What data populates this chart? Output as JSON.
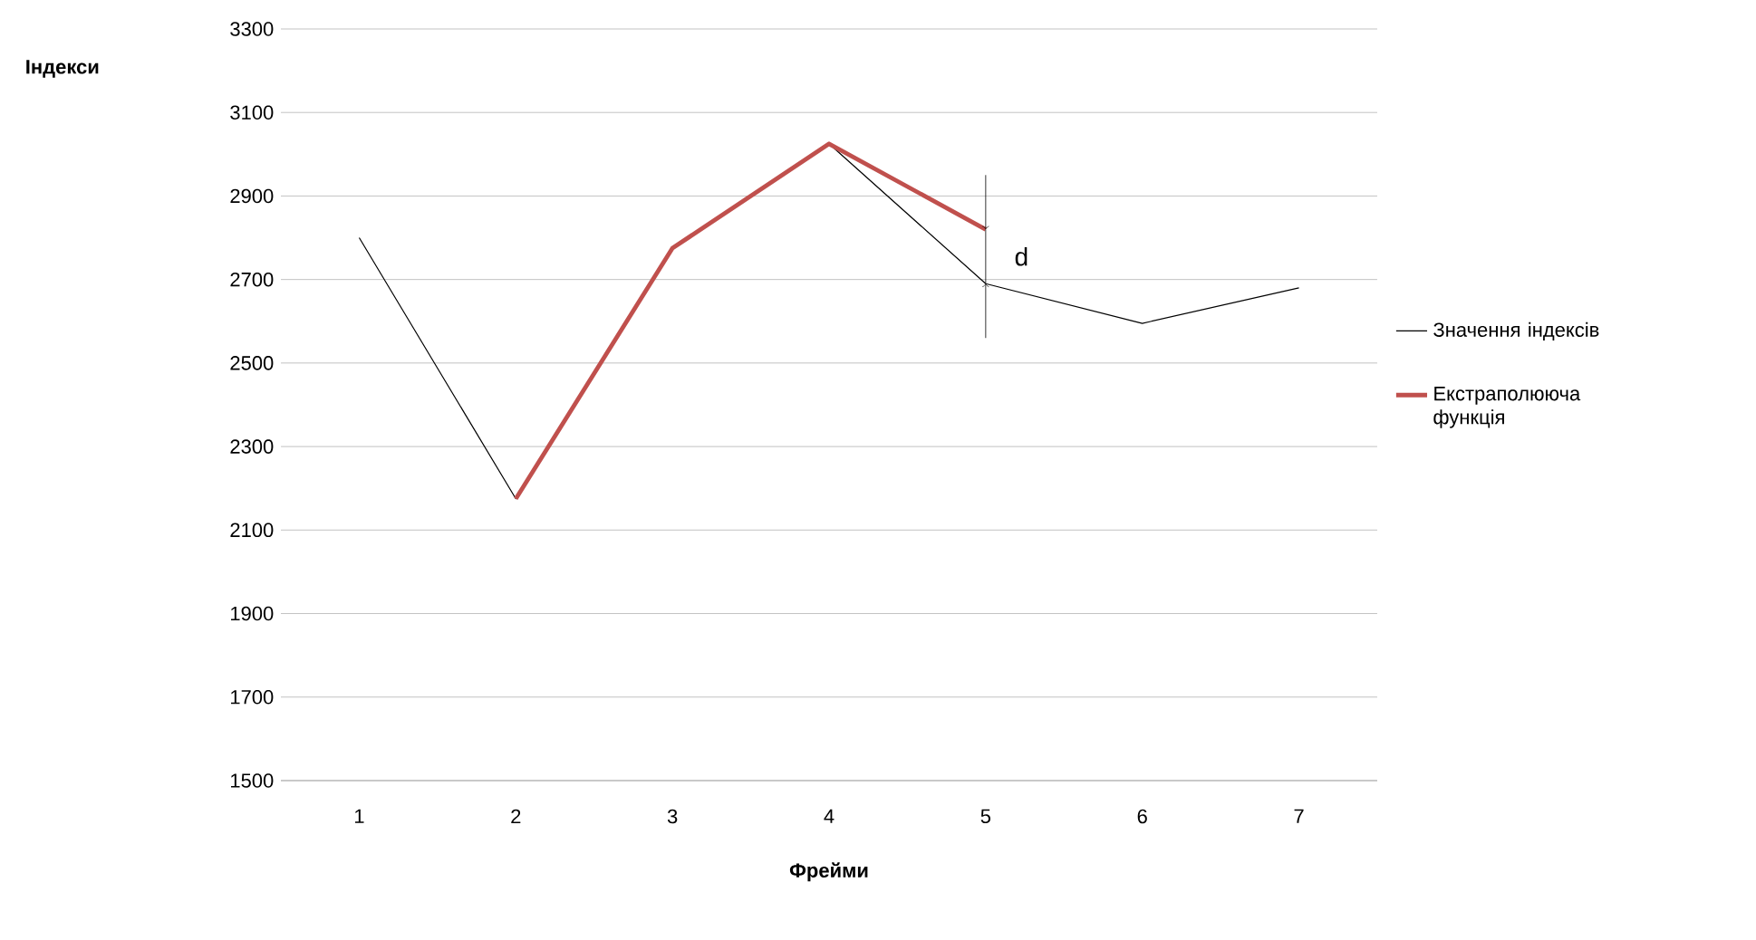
{
  "chart_data": {
    "type": "line",
    "xlabel": "Фрейми",
    "categories": [
      "1",
      "2",
      "3",
      "4",
      "5",
      "6",
      "7"
    ],
    "series": [
      {
        "name": "Значення індексів",
        "color": "#000000",
        "values": [
          2800,
          2175,
          2775,
          3025,
          2690,
          2595,
          2680
        ]
      },
      {
        "name": "Екстраполююча функція",
        "color": "#c0504d",
        "values": [
          null,
          2175,
          2775,
          3025,
          2820,
          null,
          null
        ]
      }
    ],
    "ylim": [
      1500,
      3300
    ],
    "yticks": [
      1500,
      1700,
      1900,
      2100,
      2300,
      2500,
      2700,
      2900,
      3100,
      3300
    ],
    "grid": "y",
    "legend": "right",
    "marker": "none",
    "line_style": "solid",
    "annotations": [
      "Індекси",
      "d"
    ]
  }
}
